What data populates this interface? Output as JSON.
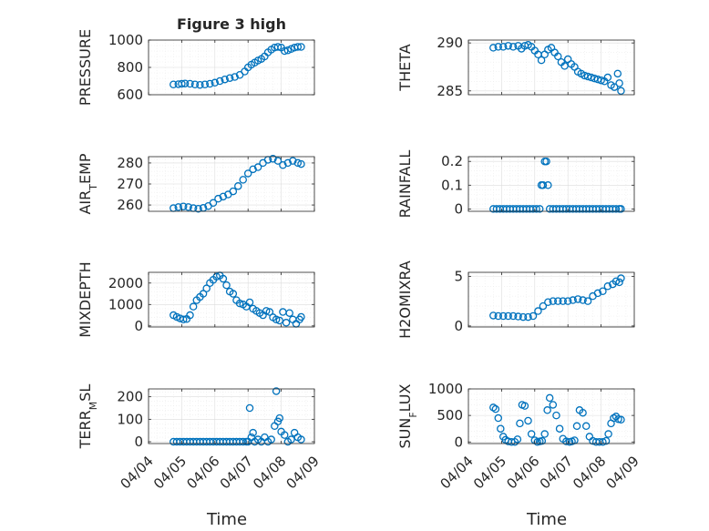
{
  "chart_data": [
    {
      "type": "scatter",
      "title": "Figure 3 high",
      "ylabel": "PRESSURE",
      "ylabel_parts": [
        {
          "t": "PRESSURE",
          "sub": false
        }
      ],
      "xlim": [
        "2020-04-04",
        "2020-04-09"
      ],
      "ylim": [
        600,
        1000
      ],
      "yticks": [
        600,
        800,
        1000
      ],
      "yticklabels": [
        "600",
        "800",
        "1000"
      ],
      "grid": true,
      "series": [
        {
          "x": [
            4.75,
            4.9,
            5.0,
            5.1,
            5.25,
            5.4,
            5.55,
            5.7,
            5.85,
            6.0,
            6.15,
            6.3,
            6.45,
            6.6,
            6.75,
            6.9,
            7.0,
            7.1,
            7.2,
            7.3,
            7.4,
            7.5,
            7.6,
            7.7,
            7.8,
            7.9,
            8.0,
            8.1,
            8.2,
            8.3,
            8.4,
            8.5,
            8.6
          ],
          "values": [
            675,
            677,
            680,
            682,
            680,
            675,
            672,
            675,
            680,
            688,
            700,
            712,
            722,
            730,
            745,
            770,
            800,
            820,
            835,
            850,
            862,
            880,
            910,
            930,
            945,
            950,
            945,
            920,
            925,
            935,
            945,
            950,
            950
          ]
        }
      ]
    },
    {
      "type": "scatter",
      "title": "",
      "ylabel": "THETA",
      "ylabel_parts": [
        {
          "t": "THETA",
          "sub": false
        }
      ],
      "xlim": [
        "2020-04-04",
        "2020-04-09"
      ],
      "ylim": [
        284.6,
        290.3
      ],
      "yticks": [
        285,
        290
      ],
      "yticklabels": [
        "285",
        "290"
      ],
      "grid": true,
      "series": [
        {
          "x": [
            4.75,
            4.9,
            5.05,
            5.2,
            5.35,
            5.5,
            5.6,
            5.7,
            5.8,
            5.9,
            6.0,
            6.1,
            6.2,
            6.3,
            6.4,
            6.5,
            6.6,
            6.7,
            6.8,
            6.9,
            7.0,
            7.1,
            7.2,
            7.3,
            7.4,
            7.5,
            7.6,
            7.7,
            7.8,
            7.9,
            8.0,
            8.1,
            8.2,
            8.3,
            8.4,
            8.5,
            8.55,
            8.6
          ],
          "values": [
            289.5,
            289.6,
            289.6,
            289.7,
            289.6,
            289.7,
            289.4,
            289.7,
            289.8,
            289.6,
            289.2,
            288.8,
            288.2,
            288.8,
            289.3,
            289.5,
            289.0,
            288.6,
            288.0,
            287.6,
            288.3,
            287.8,
            287.5,
            287.0,
            286.8,
            286.6,
            286.5,
            286.4,
            286.3,
            286.2,
            286.1,
            286.0,
            286.4,
            285.6,
            285.4,
            286.8,
            285.8,
            285.0
          ]
        }
      ]
    },
    {
      "type": "scatter",
      "title": "",
      "ylabel": "AIR_TEMP",
      "ylabel_parts": [
        {
          "t": "AIR",
          "sub": false
        },
        {
          "t": "T",
          "sub": true
        },
        {
          "t": "EMP",
          "sub": false
        }
      ],
      "xlim": [
        "2020-04-04",
        "2020-04-09"
      ],
      "ylim": [
        257,
        283
      ],
      "yticks": [
        260,
        270,
        280
      ],
      "yticklabels": [
        "260",
        "270",
        "280"
      ],
      "grid": true,
      "series": [
        {
          "x": [
            4.75,
            4.9,
            5.05,
            5.2,
            5.35,
            5.5,
            5.65,
            5.8,
            5.95,
            6.1,
            6.25,
            6.4,
            6.55,
            6.7,
            6.85,
            7.0,
            7.15,
            7.3,
            7.45,
            7.6,
            7.75,
            7.9,
            8.05,
            8.2,
            8.35,
            8.5,
            8.6
          ],
          "values": [
            258.5,
            259,
            259.3,
            259,
            258.5,
            258.2,
            258.6,
            259.5,
            261,
            263,
            264,
            265,
            266.5,
            269,
            272,
            275,
            277,
            278,
            280,
            281.5,
            282,
            281,
            279,
            280,
            281,
            280,
            279.5
          ]
        }
      ]
    },
    {
      "type": "scatter",
      "title": "",
      "ylabel": "RAINFALL",
      "ylabel_parts": [
        {
          "t": "RAINFALL",
          "sub": false
        }
      ],
      "xlim": [
        "2020-04-04",
        "2020-04-09"
      ],
      "ylim": [
        -0.01,
        0.22
      ],
      "yticks": [
        0,
        0.1,
        0.2
      ],
      "yticklabels": [
        "0",
        "0.1",
        "0.2"
      ],
      "grid": true,
      "series": [
        {
          "x": [
            4.75,
            4.85,
            4.95,
            5.05,
            5.15,
            5.25,
            5.35,
            5.45,
            5.55,
            5.65,
            5.75,
            5.85,
            5.95,
            6.05,
            6.15,
            6.2,
            6.25,
            6.3,
            6.35,
            6.4,
            6.45,
            6.55,
            6.65,
            6.75,
            6.85,
            6.95,
            7.05,
            7.15,
            7.25,
            7.35,
            7.45,
            7.55,
            7.65,
            7.75,
            7.85,
            7.95,
            8.05,
            8.15,
            8.25,
            8.35,
            8.45,
            8.55,
            8.6
          ],
          "values": [
            0,
            0,
            0,
            0,
            0,
            0,
            0,
            0,
            0,
            0,
            0,
            0,
            0,
            0,
            0,
            0.1,
            0.1,
            0.2,
            0.2,
            0.1,
            0,
            0,
            0,
            0,
            0,
            0,
            0,
            0,
            0,
            0,
            0,
            0,
            0,
            0,
            0,
            0,
            0,
            0,
            0,
            0,
            0,
            0,
            0
          ]
        }
      ]
    },
    {
      "type": "scatter",
      "title": "",
      "ylabel": "MIXDEPTH",
      "ylabel_parts": [
        {
          "t": "MIXDEPTH",
          "sub": false
        }
      ],
      "xlim": [
        "2020-04-04",
        "2020-04-09"
      ],
      "ylim": [
        -50,
        2500
      ],
      "yticks": [
        0,
        1000,
        2000
      ],
      "yticklabels": [
        "0",
        "1000",
        "2000"
      ],
      "grid": true,
      "series": [
        {
          "x": [
            4.75,
            4.85,
            4.95,
            5.05,
            5.15,
            5.25,
            5.35,
            5.45,
            5.55,
            5.65,
            5.75,
            5.85,
            5.95,
            6.05,
            6.15,
            6.25,
            6.35,
            6.45,
            6.55,
            6.65,
            6.75,
            6.85,
            6.95,
            7.05,
            7.15,
            7.25,
            7.35,
            7.45,
            7.55,
            7.65,
            7.75,
            7.85,
            7.95,
            8.05,
            8.15,
            8.25,
            8.35,
            8.45,
            8.55,
            8.6
          ],
          "values": [
            500,
            420,
            350,
            300,
            320,
            500,
            900,
            1200,
            1350,
            1500,
            1750,
            2000,
            2150,
            2300,
            2350,
            2200,
            1900,
            1600,
            1500,
            1200,
            1050,
            1000,
            900,
            1100,
            800,
            700,
            600,
            500,
            700,
            650,
            400,
            300,
            250,
            650,
            150,
            600,
            300,
            100,
            300,
            420
          ]
        }
      ]
    },
    {
      "type": "scatter",
      "title": "",
      "ylabel": "H2OMIXRA",
      "ylabel_parts": [
        {
          "t": "H2OMIXRA",
          "sub": false
        }
      ],
      "xlim": [
        "2020-04-04",
        "2020-04-09"
      ],
      "ylim": [
        -0.1,
        5.4
      ],
      "yticks": [
        0,
        5
      ],
      "yticklabels": [
        "0",
        "5"
      ],
      "grid": true,
      "series": [
        {
          "x": [
            4.75,
            4.9,
            5.05,
            5.2,
            5.35,
            5.5,
            5.65,
            5.8,
            5.95,
            6.1,
            6.25,
            6.4,
            6.55,
            6.7,
            6.85,
            7.0,
            7.15,
            7.3,
            7.45,
            7.6,
            7.75,
            7.9,
            8.05,
            8.2,
            8.35,
            8.45,
            8.55,
            8.6
          ],
          "values": [
            1.05,
            1.0,
            1.0,
            1.0,
            1.0,
            0.95,
            0.9,
            0.9,
            1.0,
            1.5,
            2.0,
            2.4,
            2.5,
            2.5,
            2.5,
            2.5,
            2.6,
            2.7,
            2.6,
            2.5,
            3.0,
            3.3,
            3.5,
            4.0,
            4.2,
            4.5,
            4.4,
            4.8
          ]
        }
      ]
    },
    {
      "type": "scatter",
      "title": "",
      "ylabel": "TERR_MSL",
      "ylabel_parts": [
        {
          "t": "TERR",
          "sub": false
        },
        {
          "t": "M",
          "sub": true
        },
        {
          "t": "SL",
          "sub": false
        }
      ],
      "xlim": [
        "2020-04-04",
        "2020-04-09"
      ],
      "ylim": [
        -8,
        235
      ],
      "yticks": [
        0,
        100,
        200
      ],
      "yticklabels": [
        "0",
        "100",
        "200"
      ],
      "xticks": [
        "04/04",
        "04/05",
        "04/06",
        "04/07",
        "04/08",
        "04/09"
      ],
      "xlabel": "Time",
      "grid": true,
      "series": [
        {
          "x": [
            4.75,
            4.85,
            4.95,
            5.05,
            5.15,
            5.25,
            5.35,
            5.45,
            5.55,
            5.65,
            5.75,
            5.85,
            5.95,
            6.05,
            6.15,
            6.25,
            6.35,
            6.45,
            6.55,
            6.65,
            6.75,
            6.85,
            6.95,
            7.0,
            7.05,
            7.1,
            7.15,
            7.2,
            7.3,
            7.4,
            7.5,
            7.6,
            7.7,
            7.8,
            7.85,
            7.9,
            7.95,
            8.0,
            8.1,
            8.2,
            8.3,
            8.4,
            8.5,
            8.6
          ],
          "values": [
            0,
            0,
            0,
            0,
            0,
            0,
            0,
            0,
            0,
            0,
            0,
            0,
            0,
            0,
            0,
            0,
            0,
            0,
            0,
            0,
            0,
            0,
            0,
            0,
            150,
            20,
            40,
            0,
            10,
            0,
            20,
            0,
            10,
            70,
            225,
            90,
            105,
            45,
            30,
            0,
            10,
            40,
            20,
            10
          ]
        }
      ]
    },
    {
      "type": "scatter",
      "title": "",
      "ylabel": "SUN_FLUX",
      "ylabel_parts": [
        {
          "t": "SUN",
          "sub": false
        },
        {
          "t": "F",
          "sub": true
        },
        {
          "t": "LUX",
          "sub": false
        }
      ],
      "xlim": [
        "2020-04-04",
        "2020-04-09"
      ],
      "ylim": [
        -30,
        1000
      ],
      "yticks": [
        0,
        500,
        1000
      ],
      "yticklabels": [
        "0",
        "500",
        "1000"
      ],
      "xticks": [
        "04/04",
        "04/05",
        "04/06",
        "04/07",
        "04/08",
        "04/09"
      ],
      "xlabel": "Time",
      "grid": true,
      "series": [
        {
          "x": [
            4.75,
            4.82,
            4.9,
            4.97,
            5.05,
            5.12,
            5.2,
            5.3,
            5.4,
            5.48,
            5.55,
            5.62,
            5.7,
            5.8,
            5.9,
            6.0,
            6.08,
            6.15,
            6.22,
            6.3,
            6.38,
            6.45,
            6.55,
            6.65,
            6.75,
            6.85,
            6.95,
            7.05,
            7.12,
            7.2,
            7.27,
            7.35,
            7.45,
            7.55,
            7.65,
            7.75,
            7.85,
            7.95,
            8.05,
            8.15,
            8.22,
            8.3,
            8.38,
            8.45,
            8.52,
            8.6
          ],
          "values": [
            650,
            620,
            450,
            250,
            100,
            40,
            10,
            0,
            0,
            50,
            350,
            700,
            680,
            400,
            150,
            30,
            0,
            10,
            20,
            150,
            600,
            830,
            700,
            500,
            250,
            60,
            10,
            0,
            10,
            30,
            300,
            600,
            550,
            300,
            100,
            20,
            0,
            0,
            0,
            20,
            150,
            350,
            450,
            480,
            430,
            420
          ]
        }
      ]
    }
  ]
}
